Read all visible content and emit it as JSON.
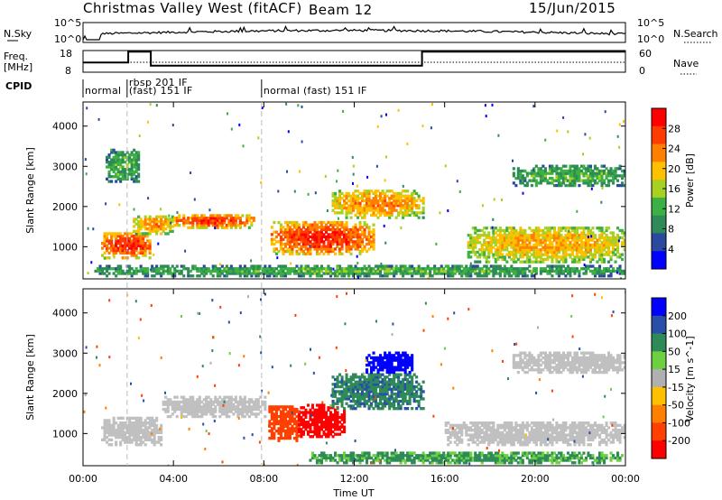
{
  "header": {
    "title": "Christmas Valley West (fitACF)",
    "beam": "Beam 12",
    "date": "15/Jun/2015"
  },
  "top_panels": {
    "nsky_label": "N.Sky",
    "nsearch_label": "N.Search",
    "nsky_ticks": [
      "10^5",
      "10^0"
    ],
    "freq_label_1": "Freq.",
    "freq_label_2": "[MHz]",
    "freq_ticks": [
      "18",
      "8"
    ],
    "nave_ticks": [
      "60",
      "0"
    ],
    "nave_label": "Nave",
    "cpid_label": "CPID"
  },
  "cpid_modes": [
    {
      "label": "normal",
      "start": 0.0
    },
    {
      "label": "rbsp 201 IF",
      "label2": "(fast) 151 IF",
      "start": 1.95
    },
    {
      "label": "normal (fast) 151 IF",
      "start": 7.9
    }
  ],
  "x_axis": {
    "title": "Time UT",
    "ticks": [
      "00:00",
      "04:00",
      "08:00",
      "12:00",
      "16:00",
      "20:00",
      "00:00"
    ],
    "range_hours": [
      0,
      24
    ]
  },
  "colors": {
    "power_scale": [
      "#0000ff",
      "#2a4aa0",
      "#2e8b57",
      "#3cb043",
      "#a8d020",
      "#ffc000",
      "#ff8000",
      "#ff3c00",
      "#ff0000"
    ],
    "velocity_scale": [
      "#0000ff",
      "#2850a8",
      "#2e8b57",
      "#6cd040",
      "#b0b0b0",
      "#ffc000",
      "#ff8000",
      "#ff4000",
      "#ff0000"
    ],
    "ground_scatter": "#c0c0c0"
  },
  "chart_data": [
    {
      "type": "heatmap",
      "name": "power",
      "ylabel": "Slant Range [km]",
      "xlabel": "",
      "yticks": [
        1000,
        2000,
        3000,
        4000
      ],
      "ylim": [
        200,
        4600
      ],
      "xlim": [
        0,
        24
      ],
      "colorbar": {
        "label": "Power [dB]",
        "ticks": [
          "28",
          "24",
          "20",
          "16",
          "12",
          "8",
          "4"
        ],
        "range": [
          0,
          30
        ]
      },
      "features": [
        {
          "t": [
            0.8,
            3.0
          ],
          "r": [
            700,
            1350
          ],
          "level": 27
        },
        {
          "t": [
            2.2,
            4.0
          ],
          "r": [
            1300,
            1750
          ],
          "level": 22
        },
        {
          "t": [
            4.0,
            7.5
          ],
          "r": [
            1450,
            1800
          ],
          "level": 26
        },
        {
          "t": [
            8.3,
            12.8
          ],
          "r": [
            800,
            1600
          ],
          "level": 27
        },
        {
          "t": [
            11.0,
            15.0
          ],
          "r": [
            1700,
            2400
          ],
          "level": 22
        },
        {
          "t": [
            17.0,
            24.0
          ],
          "r": [
            600,
            1500
          ],
          "level": 20
        },
        {
          "t": [
            1.0,
            2.5
          ],
          "r": [
            2600,
            3400
          ],
          "level": 12
        },
        {
          "t": [
            19.0,
            24.0
          ],
          "r": [
            2500,
            3000
          ],
          "level": 12
        },
        {
          "t": [
            0.5,
            24.0
          ],
          "r": [
            250,
            500
          ],
          "level": 12
        }
      ]
    },
    {
      "type": "heatmap",
      "name": "velocity",
      "ylabel": "Slant Range [km]",
      "xlabel": "Time UT",
      "yticks": [
        1000,
        2000,
        3000,
        4000
      ],
      "ylim": [
        200,
        4600
      ],
      "xlim": [
        0,
        24
      ],
      "colorbar": {
        "label": "Velocity [m s^-1]",
        "ticks": [
          "200",
          "100",
          "50",
          "15",
          "-15",
          "-50",
          "-100",
          "-200"
        ],
        "range": [
          -250,
          250
        ]
      },
      "features": [
        {
          "t": [
            0.8,
            3.5
          ],
          "r": [
            700,
            1400
          ],
          "class": "ground"
        },
        {
          "t": [
            3.5,
            8.0
          ],
          "r": [
            1400,
            1900
          ],
          "class": "ground"
        },
        {
          "t": [
            8.2,
            9.5
          ],
          "r": [
            800,
            1700
          ],
          "vel": -120
        },
        {
          "t": [
            9.5,
            11.5
          ],
          "r": [
            900,
            1700
          ],
          "vel": -180
        },
        {
          "t": [
            11.0,
            15.0
          ],
          "r": [
            1600,
            2500
          ],
          "vel": 60
        },
        {
          "t": [
            12.5,
            14.5
          ],
          "r": [
            2500,
            3000
          ],
          "vel": 200
        },
        {
          "t": [
            16.0,
            24.0
          ],
          "r": [
            700,
            1300
          ],
          "class": "ground"
        },
        {
          "t": [
            19.0,
            24.0
          ],
          "r": [
            2500,
            3000
          ],
          "class": "ground"
        },
        {
          "t": [
            10.0,
            24.0
          ],
          "r": [
            250,
            500
          ],
          "vel": 40
        }
      ]
    }
  ]
}
